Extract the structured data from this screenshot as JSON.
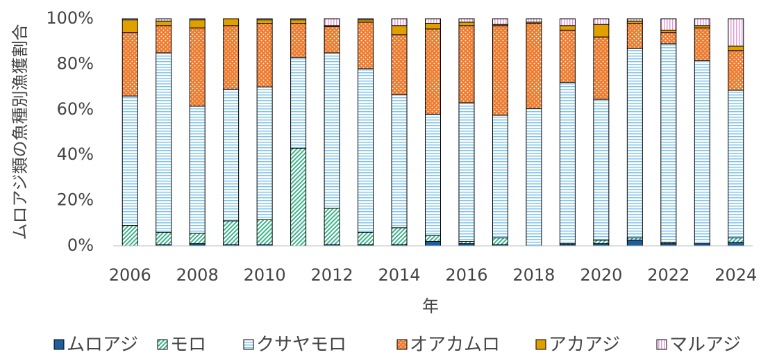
{
  "chart_data": {
    "type": "stacked_bar",
    "x_label": "年",
    "y_label": "ムロアジ類の魚種別漁獲割合",
    "categories": [
      "2006",
      null,
      "2008",
      null,
      "2010",
      null,
      "2012",
      null,
      "2014",
      null,
      "2016",
      null,
      "2018",
      null,
      "2020",
      null,
      "2022",
      null,
      "2024"
    ],
    "series": [
      {
        "name": "ムロアジ",
        "color": "#1f5e9c",
        "pattern": "solid",
        "values": [
          0,
          0.5,
          1,
          0.5,
          0.5,
          0,
          0.5,
          0.5,
          0.5,
          2,
          1,
          0.5,
          0,
          0.5,
          1,
          2.5,
          1,
          1,
          1.5
        ]
      },
      {
        "name": "モロ",
        "color": "#3bb38a",
        "pattern": "diagonal",
        "values": [
          9,
          5.5,
          4.5,
          10.5,
          11,
          43,
          16,
          5.5,
          7.5,
          2.5,
          1,
          3,
          0,
          0.5,
          1.5,
          1,
          0.5,
          0,
          2
        ]
      },
      {
        "name": "クサヤモロ",
        "color": "#7fc4ec",
        "pattern": "horizontal",
        "values": [
          57,
          79,
          56,
          58,
          58.5,
          40,
          68.5,
          72,
          58.5,
          53.5,
          61,
          54,
          60.5,
          71,
          62,
          83.5,
          87.5,
          80.5,
          65
        ]
      },
      {
        "name": "オアカムロ",
        "color": "#ed7d31",
        "pattern": "dots",
        "values": [
          28,
          12,
          34.5,
          28,
          28,
          15,
          11.5,
          20.5,
          26.5,
          37.5,
          34,
          39.5,
          37.5,
          23,
          27.5,
          11,
          5,
          14.5,
          17.5
        ]
      },
      {
        "name": "アカアジ",
        "color": "#e0a100",
        "pattern": "solid",
        "values": [
          5.5,
          2,
          3.5,
          3,
          1.5,
          1.5,
          0.5,
          1,
          4,
          2.5,
          1.5,
          0.5,
          0.5,
          2,
          5.5,
          1,
          1,
          1,
          2
        ]
      },
      {
        "name": "マルアジ",
        "color": "#e59ad6",
        "pattern": "vertical",
        "values": [
          0.5,
          1,
          0.5,
          0,
          0.5,
          0.5,
          3,
          0.5,
          3,
          2,
          1.5,
          2.5,
          1.5,
          3,
          2.5,
          1,
          5,
          3,
          12
        ]
      }
    ],
    "ylim": [
      0,
      100
    ],
    "yticks": [
      {
        "value": 0,
        "label": "0%"
      },
      {
        "value": 20,
        "label": "20%"
      },
      {
        "value": 40,
        "label": "40%"
      },
      {
        "value": 60,
        "label": "60%"
      },
      {
        "value": 80,
        "label": "80%"
      },
      {
        "value": 100,
        "label": "100%"
      }
    ],
    "legend": "bottom"
  }
}
